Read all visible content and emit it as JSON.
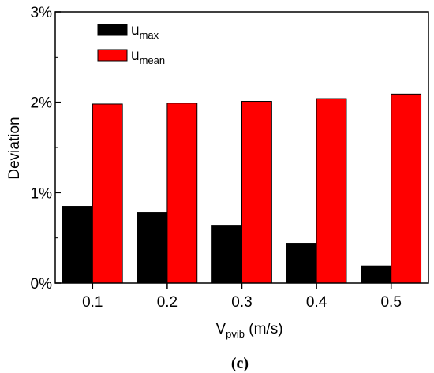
{
  "chart_data": {
    "type": "bar",
    "categories": [
      "0.1",
      "0.2",
      "0.3",
      "0.4",
      "0.5"
    ],
    "series": [
      {
        "name": "max",
        "prefix": "u",
        "color": "#000000",
        "values": [
          0.85,
          0.78,
          0.64,
          0.44,
          0.19
        ]
      },
      {
        "name": "mean",
        "prefix": "u",
        "color": "#ff0000",
        "values": [
          1.98,
          1.99,
          2.01,
          2.04,
          2.09
        ]
      }
    ],
    "ylim": [
      0,
      3
    ],
    "ytick_values": [
      0,
      1,
      2,
      3
    ],
    "ytick_labels": [
      "0%",
      "1%",
      "2%",
      "3%"
    ],
    "ylabel": "Deviation",
    "xlabel": {
      "main": "V",
      "sub": "pvib",
      "unit": " (m/s)"
    },
    "legend_position": "top-left",
    "grid": false,
    "panel_label": "(c)"
  }
}
